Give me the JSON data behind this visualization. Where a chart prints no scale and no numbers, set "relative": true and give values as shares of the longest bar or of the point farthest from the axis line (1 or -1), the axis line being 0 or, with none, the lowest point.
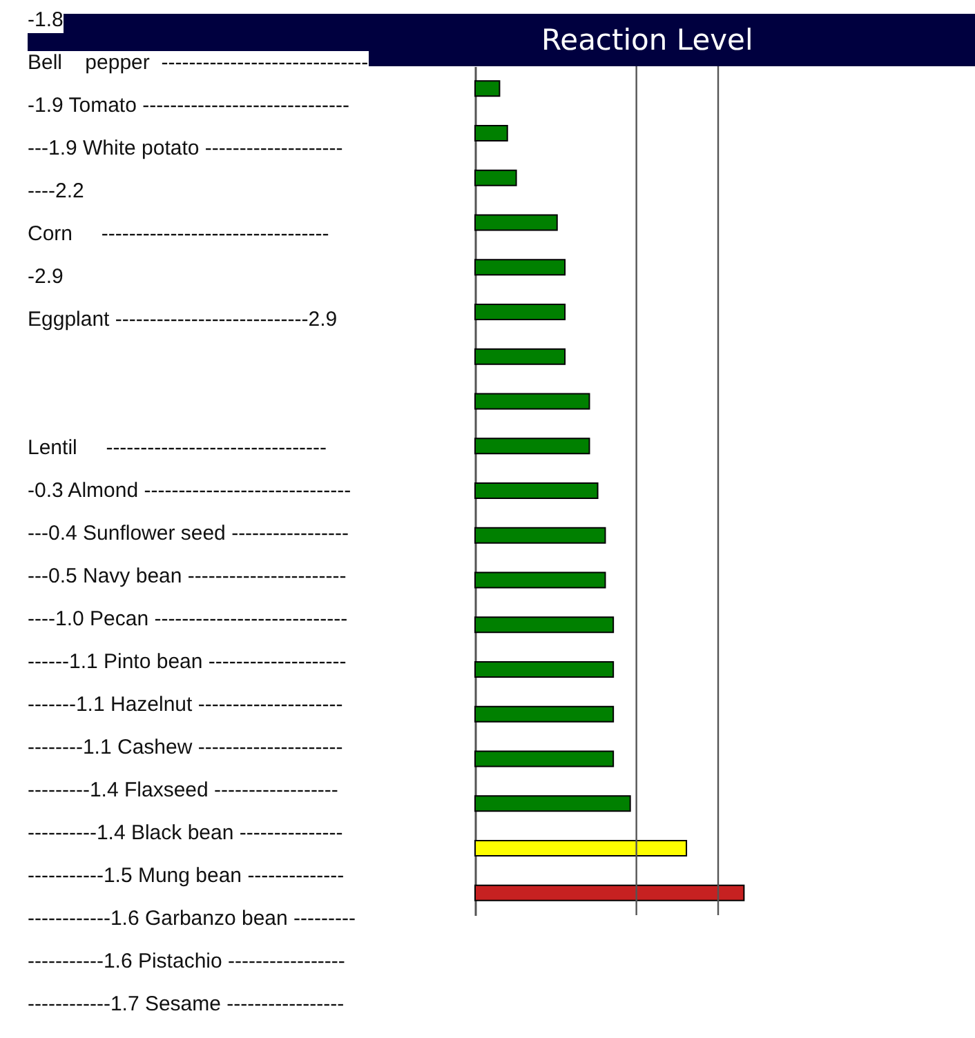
{
  "chart_data": {
    "type": "bar",
    "orientation": "horizontal",
    "relative": true,
    "title": "Reaction Level",
    "categories": [
      null,
      null,
      null,
      null,
      null,
      null,
      null,
      null,
      null,
      null,
      null,
      null,
      null,
      null,
      null,
      null,
      null,
      null,
      null
    ],
    "values": [
      0.091,
      0.12,
      0.153,
      0.305,
      0.334,
      0.334,
      0.334,
      0.425,
      0.425,
      0.456,
      0.484,
      0.484,
      0.514,
      0.514,
      0.514,
      0.514,
      0.577,
      0.786,
      1
    ],
    "colors": [
      "#008000",
      "#008000",
      "#008000",
      "#008000",
      "#008000",
      "#008000",
      "#008000",
      "#008000",
      "#008000",
      "#008000",
      "#008000",
      "#008000",
      "#008000",
      "#008000",
      "#008000",
      "#008000",
      "#008000",
      "#ffff00",
      "#c62121"
    ],
    "ref_lines": [
      {
        "axis": "x",
        "value": 0.6,
        "label": null,
        "color": "#555555"
      },
      {
        "axis": "x",
        "value": 0.904,
        "label": null,
        "color": "#555555"
      }
    ],
    "annotations": [
      "-1.8",
      "Bell    pepper  ------------------------------",
      "-1.9 Tomato ------------------------------",
      "---1.9 White potato --------------------",
      "----2.2",
      "Corn     ---------------------------------",
      "-2.9",
      "Eggplant ----------------------------2.9",
      "Lentil     --------------------------------",
      "-0.3 Almond ------------------------------",
      "---0.4 Sunflower seed -----------------",
      "---0.5 Navy bean -----------------------",
      "----1.0 Pecan ----------------------------",
      "------1.1 Pinto bean --------------------",
      "-------1.1 Hazelnut ---------------------",
      "--------1.1 Cashew ---------------------",
      "---------1.4 Flaxseed ------------------",
      "----------1.4 Black bean ---------------",
      "-----------1.5 Mung bean --------------",
      "------------1.6 Garbanzo bean ---------",
      "-----------1.6 Pistachio -----------------",
      "------------1.7 Sesame -----------------"
    ]
  }
}
